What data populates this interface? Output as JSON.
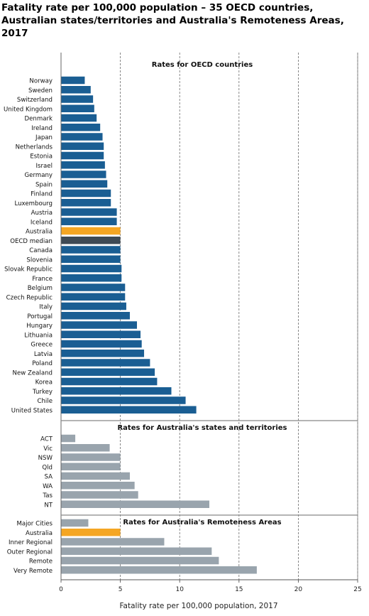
{
  "title": "Fatality rate per 100,000 population – 35 OECD countries, Australian states/territories and Australia's Remoteness Areas, 2017",
  "chart_data": {
    "type": "bar",
    "orientation": "horizontal",
    "title": "Fatality rate per 100,000 population – 35 OECD countries, Australian states/territories and Australia's Remoteness Areas, 2017",
    "xlabel": "Fatality rate per 100,000 population, 2017",
    "ylabel": "",
    "xlim": [
      0,
      25
    ],
    "xticks": [
      0,
      5,
      10,
      15,
      20,
      25
    ],
    "grid": "vertical dashed",
    "colors": {
      "oecd": "#1a5e93",
      "australia": "#f5a623",
      "median": "#3f4a54",
      "states": "#99a4ad"
    },
    "panels": [
      {
        "label": "Rates for OECD countries",
        "default_color": "oecd",
        "bars": [
          {
            "category": "Norway",
            "value": 2.0
          },
          {
            "category": "Sweden",
            "value": 2.5
          },
          {
            "category": "Switzerland",
            "value": 2.7
          },
          {
            "category": "United Kingdom",
            "value": 2.8
          },
          {
            "category": "Denmark",
            "value": 3.0
          },
          {
            "category": "Ireland",
            "value": 3.3
          },
          {
            "category": "Japan",
            "value": 3.5
          },
          {
            "category": "Netherlands",
            "value": 3.6
          },
          {
            "category": "Estonia",
            "value": 3.6
          },
          {
            "category": "Israel",
            "value": 3.7
          },
          {
            "category": "Germany",
            "value": 3.8
          },
          {
            "category": "Spain",
            "value": 3.9
          },
          {
            "category": "Finland",
            "value": 4.2
          },
          {
            "category": "Luxembourg",
            "value": 4.2
          },
          {
            "category": "Austria",
            "value": 4.7
          },
          {
            "category": "Iceland",
            "value": 4.7
          },
          {
            "category": "Australia",
            "value": 5.0,
            "color": "australia"
          },
          {
            "category": "OECD median",
            "value": 5.0,
            "color": "median"
          },
          {
            "category": "Canada",
            "value": 5.0
          },
          {
            "category": "Slovenia",
            "value": 5.0
          },
          {
            "category": "Slovak Republic",
            "value": 5.1
          },
          {
            "category": "France",
            "value": 5.1
          },
          {
            "category": "Belgium",
            "value": 5.4
          },
          {
            "category": "Czech Republic",
            "value": 5.4
          },
          {
            "category": "Italy",
            "value": 5.5
          },
          {
            "category": "Portugal",
            "value": 5.8
          },
          {
            "category": "Hungary",
            "value": 6.4
          },
          {
            "category": "Lithuania",
            "value": 6.7
          },
          {
            "category": "Greece",
            "value": 6.8
          },
          {
            "category": "Latvia",
            "value": 7.0
          },
          {
            "category": "Poland",
            "value": 7.5
          },
          {
            "category": "New Zealand",
            "value": 7.9
          },
          {
            "category": "Korea",
            "value": 8.1
          },
          {
            "category": "Turkey",
            "value": 9.3
          },
          {
            "category": "Chile",
            "value": 10.5
          },
          {
            "category": "United States",
            "value": 11.4
          }
        ]
      },
      {
        "label": "Rates for Australia's states and territories",
        "default_color": "states",
        "bars": [
          {
            "category": "ACT",
            "value": 1.2
          },
          {
            "category": "Vic",
            "value": 4.1
          },
          {
            "category": "NSW",
            "value": 5.0
          },
          {
            "category": "Qld",
            "value": 5.0
          },
          {
            "category": "SA",
            "value": 5.8
          },
          {
            "category": "WA",
            "value": 6.2
          },
          {
            "category": "Tas",
            "value": 6.5
          },
          {
            "category": "NT",
            "value": 12.5
          }
        ]
      },
      {
        "label": "Rates for Australia's Remoteness Areas",
        "default_color": "states",
        "bars": [
          {
            "category": "Major Cities",
            "value": 2.3
          },
          {
            "category": "Australia",
            "value": 5.0,
            "color": "australia"
          },
          {
            "category": "Inner Regional",
            "value": 8.7
          },
          {
            "category": "Outer Regional",
            "value": 12.7
          },
          {
            "category": "Remote",
            "value": 13.3
          },
          {
            "category": "Very Remote",
            "value": 16.5
          }
        ]
      }
    ]
  }
}
